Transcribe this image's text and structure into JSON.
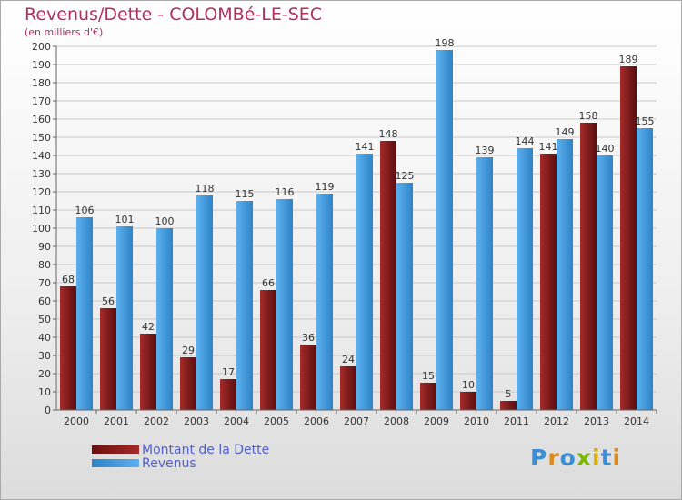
{
  "header": {
    "title": "Revenus/Dette - COLOMBé-LE-SEC",
    "subtitle": "(en milliers d'€)"
  },
  "chart_data": {
    "type": "bar",
    "categories": [
      "2000",
      "2001",
      "2002",
      "2003",
      "2004",
      "2005",
      "2006",
      "2007",
      "2008",
      "2009",
      "2010",
      "2011",
      "2012",
      "2013",
      "2014"
    ],
    "series": [
      {
        "name": "Montant de la Dette",
        "color": "#8b1a1a",
        "values": [
          68,
          56,
          42,
          29,
          17,
          66,
          36,
          24,
          148,
          15,
          10,
          5,
          141,
          158,
          189
        ]
      },
      {
        "name": "Revenus",
        "color": "#4aa3e6",
        "values": [
          106,
          101,
          100,
          118,
          115,
          116,
          119,
          141,
          125,
          198,
          139,
          144,
          149,
          140,
          155
        ]
      }
    ],
    "ylim": [
      0,
      200
    ],
    "ytick_step": 10,
    "grid": true,
    "legend_position": "bottom-left"
  },
  "logo": {
    "letters": [
      "P",
      "r",
      "o",
      "x",
      "i",
      "t",
      "i"
    ],
    "colors": [
      "#3a8fd8",
      "#e08a1e",
      "#3a8fd8",
      "#7ab800",
      "#e0b000",
      "#3a8fd8",
      "#e08a1e"
    ]
  }
}
